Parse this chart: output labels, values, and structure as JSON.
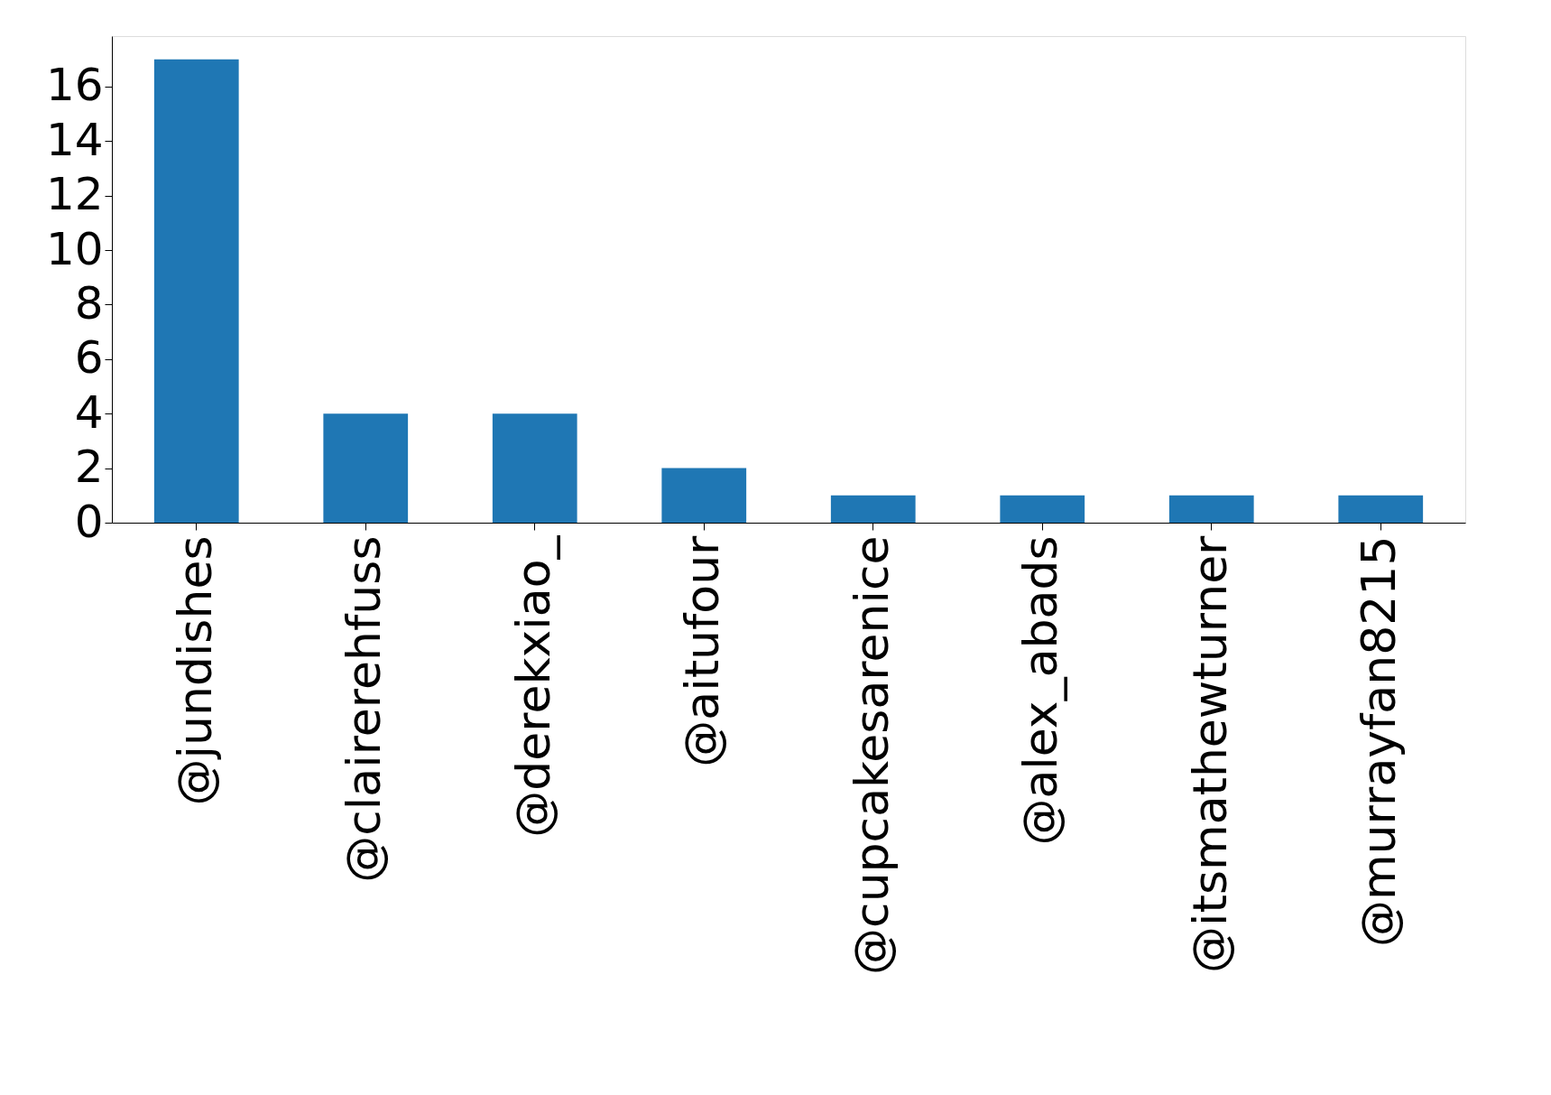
{
  "chart_data": {
    "type": "bar",
    "categories": [
      "@jundishes",
      "@clairerehfuss",
      "@derekxiao_",
      "@aitufour",
      "@cupcakesarenice",
      "@alex_abads",
      "@itsmathewturner",
      "@murrayfan8215"
    ],
    "values": [
      17,
      4,
      4,
      2,
      1,
      1,
      1,
      1
    ],
    "color": "#1f77b4",
    "ylim": [
      0,
      17.85
    ],
    "yticks": [
      0,
      2,
      4,
      6,
      8,
      10,
      12,
      14,
      16
    ],
    "grid": false
  }
}
